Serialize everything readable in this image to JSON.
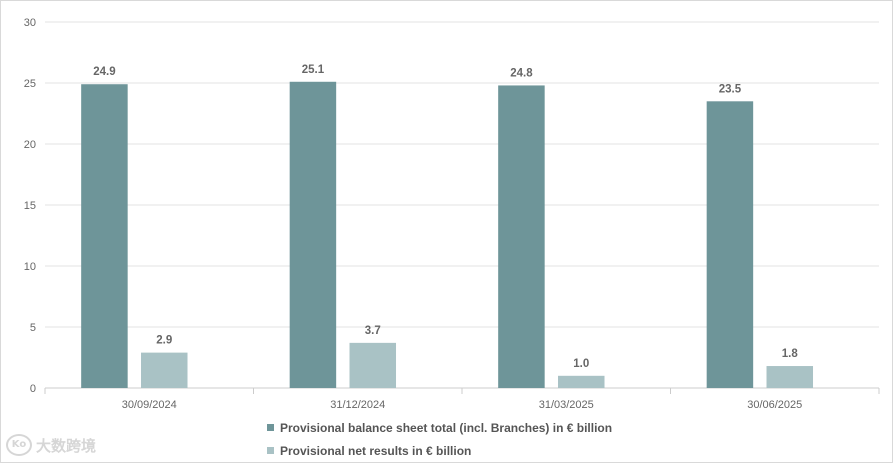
{
  "chart_data": {
    "type": "bar",
    "categories": [
      "30/09/2024",
      "31/12/2024",
      "31/03/2025",
      "30/06/2025"
    ],
    "series": [
      {
        "name": "Provisional balance sheet total (incl. Branches) in € billion",
        "values": [
          24.9,
          25.1,
          24.8,
          23.5
        ],
        "color": "#6e9599"
      },
      {
        "name": "Provisional net results in € billion",
        "values": [
          2.9,
          3.7,
          1.0,
          1.8
        ],
        "color": "#a9c2c5"
      }
    ],
    "data_labels": [
      [
        "24.9",
        "25.1",
        "24.8",
        "23.5"
      ],
      [
        "2.9",
        "3.7",
        "1.0",
        "1.8"
      ]
    ],
    "ylim": [
      0,
      30
    ],
    "yticks": [
      "0",
      "5",
      "10",
      "15",
      "20",
      "25",
      "30"
    ],
    "grid": true,
    "legend_position": "bottom",
    "title": "",
    "xlabel": "",
    "ylabel": ""
  },
  "watermark": {
    "logo_text": "Ko",
    "text": "大数跨境"
  }
}
